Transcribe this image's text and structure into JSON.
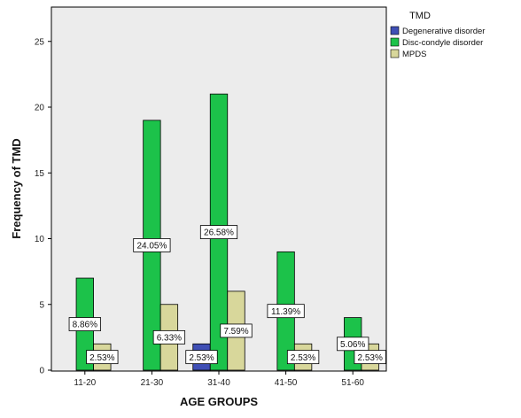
{
  "chart_data": {
    "type": "bar",
    "xlabel": "AGE GROUPS",
    "ylabel": "Frequency of TMD",
    "ylim": [
      0,
      27
    ],
    "yticks": [
      0,
      5,
      10,
      15,
      20,
      25
    ],
    "grid": false,
    "legend_position": "top-right",
    "legend_title": "TMD",
    "categories": [
      "11-20",
      "21-30",
      "31-40",
      "41-50",
      "51-60"
    ],
    "series": [
      {
        "name": "Degenerative disorder",
        "color": "#3f4fb5",
        "values": [
          0,
          0,
          2,
          0,
          0
        ],
        "labels": [
          "",
          "",
          "2.53%",
          "",
          ""
        ]
      },
      {
        "name": "Disc-condyle disorder",
        "color": "#1cc24a",
        "values": [
          7,
          19,
          21,
          9,
          4
        ],
        "labels": [
          "8.86%",
          "24.05%",
          "26.58%",
          "11.39%",
          "5.06%"
        ]
      },
      {
        "name": "MPDS",
        "color": "#d8d79b",
        "values": [
          2,
          5,
          6,
          2,
          2
        ],
        "labels": [
          "2.53%",
          "6.33%",
          "7.59%",
          "2.53%",
          "2.53%"
        ]
      }
    ],
    "colors": {
      "plot_background": "#ececec",
      "bar_stroke": "#000000"
    }
  }
}
